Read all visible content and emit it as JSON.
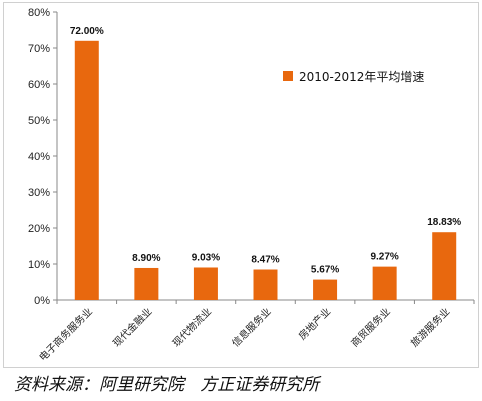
{
  "chart_data": {
    "type": "bar",
    "categories": [
      "电子商务服务业",
      "现代金融业",
      "现代物流业",
      "信息服务业",
      "房地产业",
      "商贸服务业",
      "旅游服务业"
    ],
    "series": [
      {
        "name": "2010-2012年平均增速",
        "values": [
          72.0,
          8.9,
          9.03,
          8.47,
          5.67,
          9.27,
          18.83
        ]
      }
    ],
    "data_labels": [
      "72.00%",
      "8.90%",
      "9.03%",
      "8.47%",
      "5.67%",
      "9.27%",
      "18.83%"
    ],
    "yticks": [
      "0%",
      "10%",
      "20%",
      "30%",
      "40%",
      "50%",
      "60%",
      "70%",
      "80%"
    ],
    "ylim": [
      0,
      80
    ],
    "grid": false,
    "legend_position": "top-right",
    "bar_color": "#E8680E"
  },
  "source_note": "资料来源：阿里研究院   方正证券研究所"
}
